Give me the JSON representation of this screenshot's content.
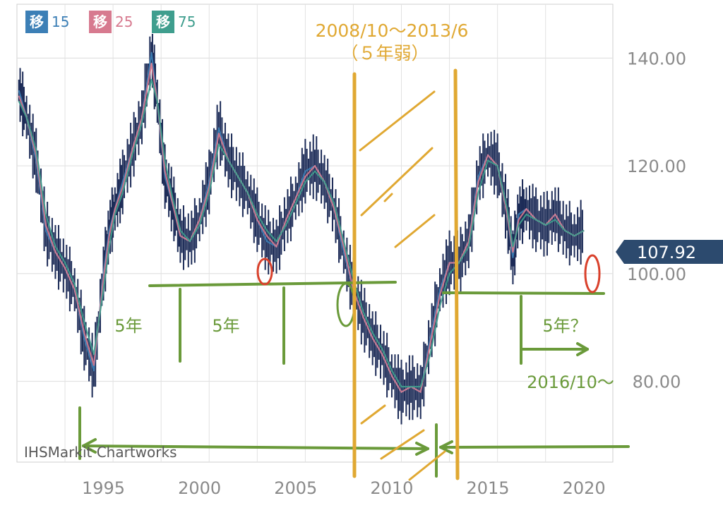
{
  "legend": [
    {
      "badge": "移",
      "value": "15",
      "color": "#3c7fb6"
    },
    {
      "badge": "移",
      "value": "25",
      "color": "#d77a8f"
    },
    {
      "badge": "移",
      "value": "75",
      "color": "#3f9e8e"
    }
  ],
  "watermark": "IHSMarkit Chartworks",
  "current_price": "107.92",
  "annotations": {
    "period_top": "2008/10〜2013/6",
    "period_sub": "（５年弱）",
    "five_a": "5年",
    "five_b": "5年",
    "five_q": "5年？",
    "since": "2016/10〜"
  },
  "colors": {
    "price_dark": "#1c2b57",
    "ma15": "#3c7fb6",
    "ma25": "#d77a8f",
    "ma75": "#3f9e8e",
    "grid": "#e2e2e2",
    "axis_text": "#8a8a8a",
    "badge_bg": "#2c4a6e",
    "annot_green": "#6a9a3a",
    "annot_orange": "#e0a832",
    "annot_red": "#d9412c"
  },
  "chart_data": {
    "type": "line",
    "title": "",
    "xlabel": "",
    "ylabel": "",
    "xlim": [
      1990.5,
      2021.5
    ],
    "ylim": [
      65,
      150
    ],
    "x_ticks": [
      1995,
      2000,
      2005,
      2010,
      2015,
      2020
    ],
    "x_tick_labels": [
      "1995",
      "2000",
      "2005",
      "2010",
      "2015",
      "2020"
    ],
    "y_ticks": [
      80,
      100,
      120,
      140
    ],
    "y_tick_labels": [
      "80.00",
      "100.00",
      "120.00",
      "140.00"
    ],
    "grid": true,
    "legend_position": "top-left",
    "last_value": 107.92,
    "series": [
      {
        "name": "移 15",
        "x": [
          1990.6,
          1991.0,
          1991.5,
          1992.0,
          1992.5,
          1993.0,
          1993.5,
          1994.0,
          1994.5,
          1995.0,
          1995.3,
          1995.6,
          1996.0,
          1996.5,
          1997.0,
          1997.5,
          1997.8,
          1998.2,
          1998.6,
          1999.0,
          1999.5,
          2000.0,
          2000.5,
          2001.0,
          2001.5,
          2002.0,
          2002.5,
          2003.0,
          2003.5,
          2004.0,
          2004.5,
          2005.0,
          2005.5,
          2006.0,
          2006.5,
          2007.0,
          2007.5,
          2008.0,
          2008.5,
          2009.0,
          2009.5,
          2010.0,
          2010.5,
          2011.0,
          2011.5,
          2012.0,
          2012.5,
          2013.0,
          2013.5,
          2014.0,
          2014.5,
          2015.0,
          2015.5,
          2016.0,
          2016.3,
          2016.6,
          2017.0,
          2017.5,
          2018.0,
          2018.5,
          2019.0,
          2019.5,
          2020.0
        ],
        "values": [
          134,
          129,
          121,
          108,
          104,
          101,
          97,
          88,
          82,
          100,
          108,
          112,
          117,
          123,
          129,
          141,
          132,
          118,
          113,
          107,
          106,
          110,
          117,
          127,
          121,
          118,
          115,
          110,
          106,
          105,
          110,
          114,
          119,
          120,
          117,
          112,
          104,
          97,
          92,
          88,
          85,
          81,
          78,
          79,
          78,
          88,
          97,
          102,
          102,
          106,
          118,
          122,
          120,
          111,
          103,
          111,
          112,
          110,
          109,
          111,
          108,
          107,
          108
        ]
      },
      {
        "name": "移 25",
        "x": [
          1990.6,
          1991.0,
          1991.5,
          1992.0,
          1992.5,
          1993.0,
          1993.5,
          1994.0,
          1994.5,
          1995.0,
          1995.3,
          1995.6,
          1996.0,
          1996.5,
          1997.0,
          1997.5,
          1997.8,
          1998.2,
          1998.6,
          1999.0,
          1999.5,
          2000.0,
          2000.5,
          2001.0,
          2001.5,
          2002.0,
          2002.5,
          2003.0,
          2003.5,
          2004.0,
          2004.5,
          2005.0,
          2005.5,
          2006.0,
          2006.5,
          2007.0,
          2007.5,
          2008.0,
          2008.5,
          2009.0,
          2009.5,
          2010.0,
          2010.5,
          2011.0,
          2011.5,
          2012.0,
          2012.5,
          2013.0,
          2013.5,
          2014.0,
          2014.5,
          2015.0,
          2015.5,
          2016.0,
          2016.3,
          2016.6,
          2017.0,
          2017.5,
          2018.0,
          2018.5,
          2019.0,
          2019.5,
          2020.0
        ],
        "values": [
          133,
          129,
          122,
          109,
          104,
          101,
          97,
          89,
          83,
          99,
          107,
          112,
          116,
          123,
          129,
          139,
          132,
          119,
          113,
          107,
          106,
          110,
          116,
          126,
          121,
          118,
          115,
          110,
          107,
          105,
          110,
          114,
          118,
          120,
          117,
          112,
          105,
          97,
          92,
          88,
          85,
          81,
          78,
          79,
          78,
          87,
          96,
          102,
          102,
          106,
          117,
          122,
          120,
          111,
          104,
          110,
          112,
          110,
          109,
          111,
          108,
          107,
          108
        ]
      },
      {
        "name": "移 75",
        "x": [
          1990.6,
          1991.0,
          1991.5,
          1992.0,
          1992.5,
          1993.0,
          1993.5,
          1994.0,
          1994.5,
          1995.0,
          1995.3,
          1995.6,
          1996.0,
          1996.5,
          1997.0,
          1997.5,
          1997.8,
          1998.2,
          1998.6,
          1999.0,
          1999.5,
          2000.0,
          2000.5,
          2001.0,
          2001.5,
          2002.0,
          2002.5,
          2003.0,
          2003.5,
          2004.0,
          2004.5,
          2005.0,
          2005.5,
          2006.0,
          2006.5,
          2007.0,
          2007.5,
          2008.0,
          2008.5,
          2009.0,
          2009.5,
          2010.0,
          2010.5,
          2011.0,
          2011.5,
          2012.0,
          2012.5,
          2013.0,
          2013.5,
          2014.0,
          2014.5,
          2015.0,
          2015.5,
          2016.0,
          2016.3,
          2016.6,
          2017.0,
          2017.5,
          2018.0,
          2018.5,
          2019.0,
          2019.5,
          2020.0
        ],
        "values": [
          132,
          129,
          123,
          111,
          105,
          102,
          98,
          91,
          85,
          97,
          105,
          111,
          115,
          122,
          128,
          136,
          132,
          121,
          114,
          108,
          106,
          109,
          115,
          124,
          121,
          118,
          115,
          111,
          108,
          106,
          109,
          113,
          117,
          119,
          117,
          113,
          106,
          99,
          93,
          89,
          86,
          82,
          79,
          79,
          79,
          85,
          94,
          100,
          102,
          105,
          115,
          121,
          120,
          112,
          105,
          109,
          111,
          110,
          109,
          110,
          108,
          107,
          108
        ]
      }
    ]
  }
}
